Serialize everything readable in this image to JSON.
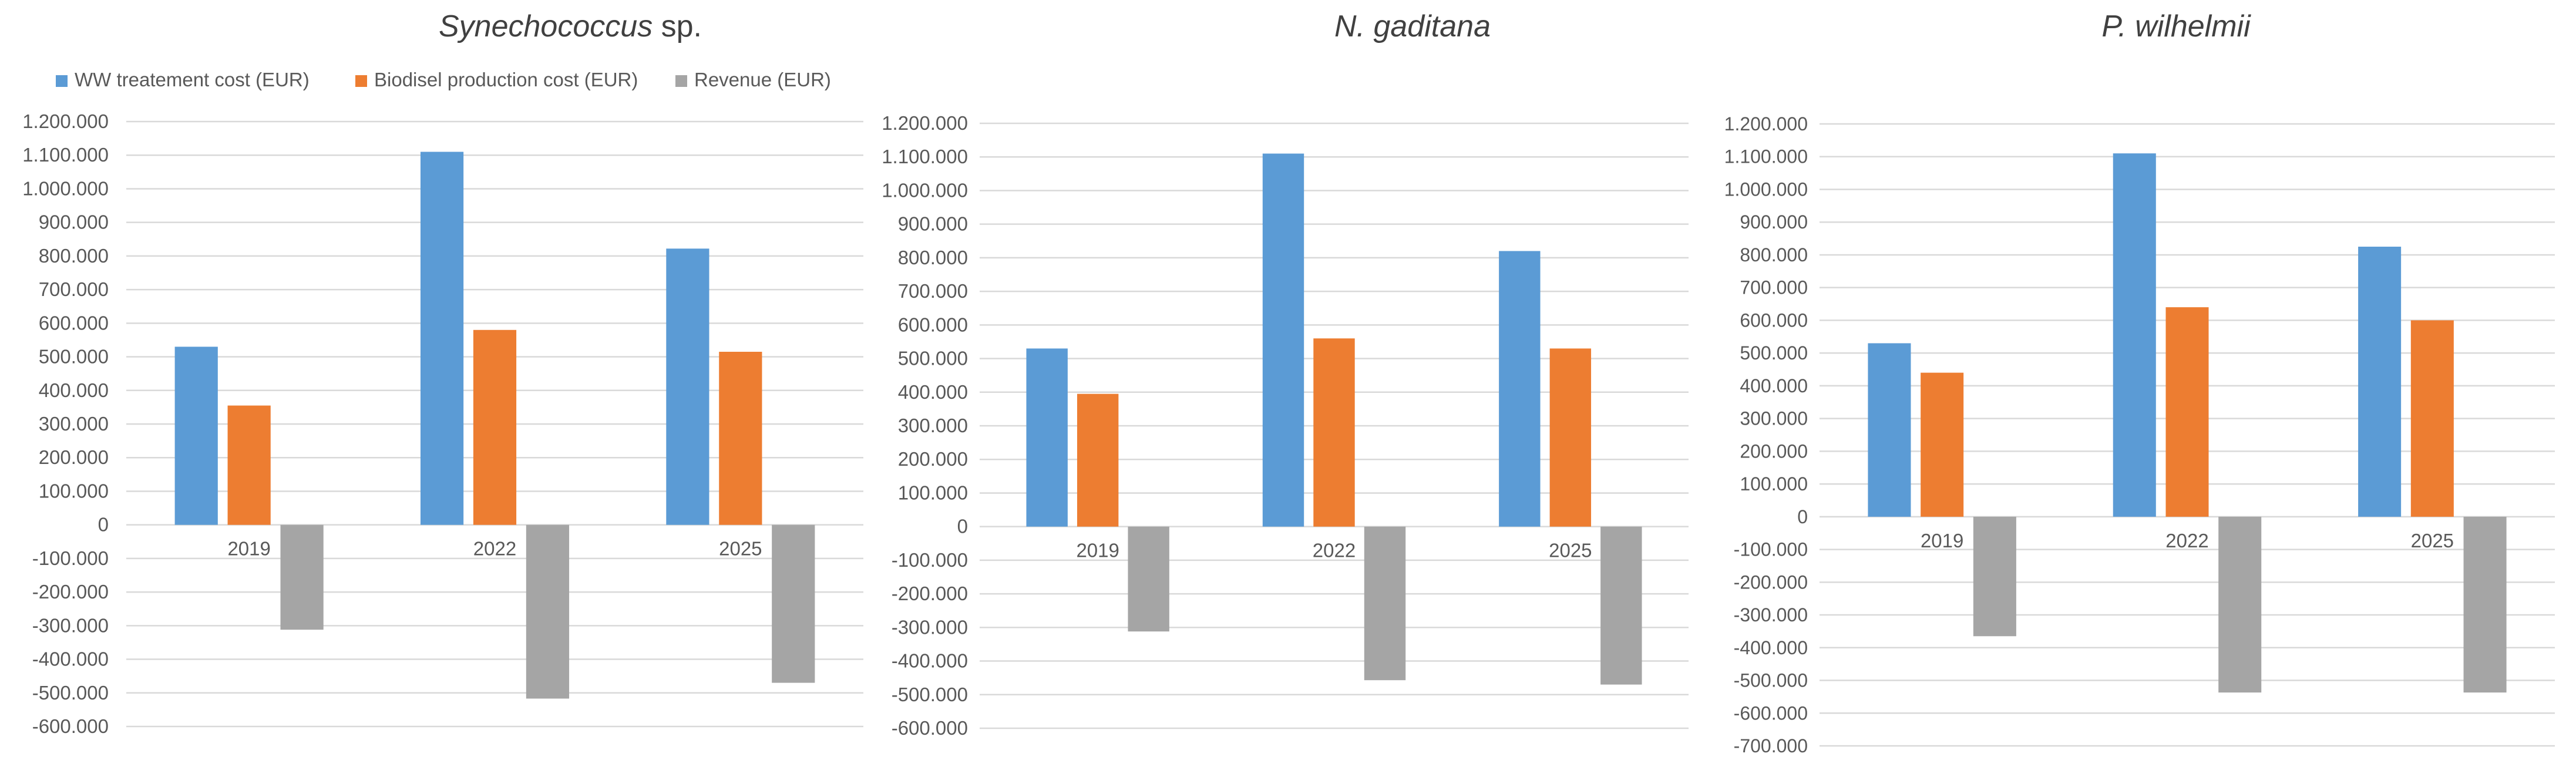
{
  "legend": [
    {
      "label": "WW treatement cost (EUR)",
      "color": "#5B9BD5"
    },
    {
      "label": "Biodisel production cost (EUR)",
      "color": "#ED7D31"
    },
    {
      "label": "Revenue (EUR)",
      "color": "#A5A5A5"
    }
  ],
  "chart_data": [
    {
      "type": "bar",
      "title_italic": "Synechococcus",
      "title_rest": " sp.",
      "categories": [
        "2019",
        "2022",
        "2025"
      ],
      "series": [
        {
          "name": "WW treatement cost (EUR)",
          "color": "#5B9BD5",
          "values": [
            530000,
            1110000,
            822000
          ]
        },
        {
          "name": "Biodisel production cost (EUR)",
          "color": "#ED7D31",
          "values": [
            355000,
            580000,
            515000
          ]
        },
        {
          "name": "Revenue (EUR)",
          "color": "#A5A5A5",
          "values": [
            -312000,
            -517000,
            -470000
          ]
        }
      ],
      "ylim": [
        -600000,
        1200000
      ],
      "ytick_step": 100000,
      "ytick_labels": [
        "1.200.000",
        "1.100.000",
        "1.000.000",
        "900.000",
        "800.000",
        "700.000",
        "600.000",
        "500.000",
        "400.000",
        "300.000",
        "200.000",
        "100.000",
        "0",
        "-100.000",
        "-200.000",
        "-300.000",
        "-400.000",
        "-500.000",
        "-600.000"
      ],
      "grid": true,
      "legend_position": "top-left"
    },
    {
      "type": "bar",
      "title_italic": "N. gaditana",
      "title_rest": "",
      "categories": [
        "2019",
        "2022",
        "2025"
      ],
      "series": [
        {
          "name": "WW treatement cost (EUR)",
          "color": "#5B9BD5",
          "values": [
            530000,
            1110000,
            820000
          ]
        },
        {
          "name": "Biodisel production cost (EUR)",
          "color": "#ED7D31",
          "values": [
            395000,
            560000,
            530000
          ]
        },
        {
          "name": "Revenue (EUR)",
          "color": "#A5A5A5",
          "values": [
            -312000,
            -457000,
            -470000
          ]
        }
      ],
      "ylim": [
        -600000,
        1200000
      ],
      "ytick_step": 100000,
      "ytick_labels": [
        "1.200.000",
        "1.100.000",
        "1.000.000",
        "900.000",
        "800.000",
        "700.000",
        "600.000",
        "500.000",
        "400.000",
        "300.000",
        "200.000",
        "100.000",
        "0",
        "-100.000",
        "-200.000",
        "-300.000",
        "-400.000",
        "-500.000",
        "-600.000"
      ],
      "grid": true
    },
    {
      "type": "bar",
      "title_italic": "P. wilhelmii",
      "title_rest": "",
      "categories": [
        "2019",
        "2022",
        "2025"
      ],
      "series": [
        {
          "name": "WW treatement cost (EUR)",
          "color": "#5B9BD5",
          "values": [
            530000,
            1110000,
            825000
          ]
        },
        {
          "name": "Biodisel production cost (EUR)",
          "color": "#ED7D31",
          "values": [
            440000,
            640000,
            600000
          ]
        },
        {
          "name": "Revenue (EUR)",
          "color": "#A5A5A5",
          "values": [
            -365000,
            -537000,
            -537000
          ]
        }
      ],
      "ylim": [
        -700000,
        1200000
      ],
      "ytick_step": 100000,
      "ytick_labels": [
        "1.200.000",
        "1.100.000",
        "1.000.000",
        "900.000",
        "800.000",
        "700.000",
        "600.000",
        "500.000",
        "400.000",
        "300.000",
        "200.000",
        "100.000",
        "0",
        "-100.000",
        "-200.000",
        "-300.000",
        "-400.000",
        "-500.000",
        "-600.000",
        "-700.000"
      ],
      "grid": true
    }
  ]
}
